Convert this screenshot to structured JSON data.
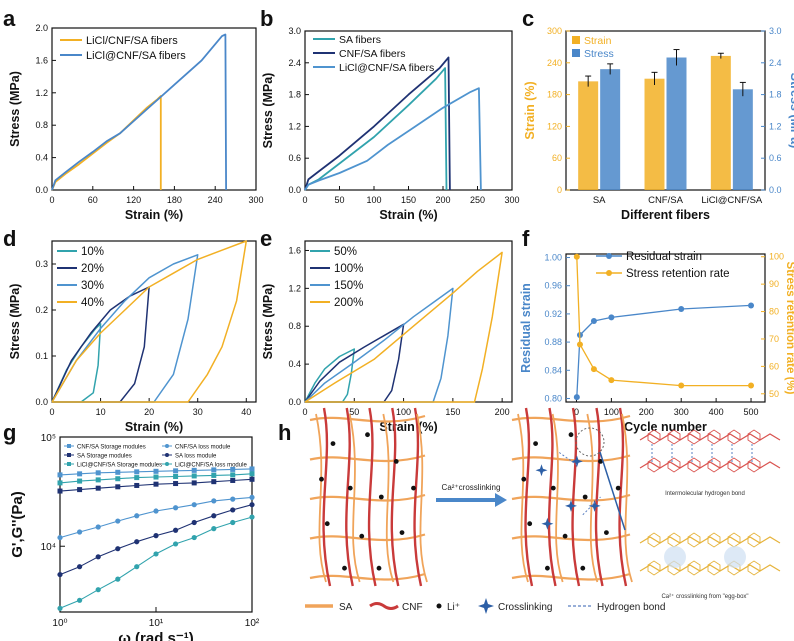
{
  "figure": {
    "colors": {
      "orange": "#f2b024",
      "blue": "#4a87c9",
      "navy": "#1f3273",
      "teal": "#31a3ad",
      "lightblue": "#4f94cf",
      "sa_strand": "#f0a45a",
      "cnf_strand": "#c93a3a",
      "dark": "#111111"
    },
    "schematic": {
      "arrow_label": "Ca²⁺crosslinking",
      "hbond_caption": "Intermolecular hydrogen bond",
      "eggbox_caption": "Ca²⁺ crosslinking from \"egg-box\"",
      "legend": {
        "sa": "SA",
        "cnf": "CNF",
        "li": "Li⁺",
        "crosslinking": "Crosslinking",
        "hbond": "Hydrogen bond"
      }
    }
  },
  "chart_data": [
    {
      "panel": "a",
      "type": "line",
      "xlabel": "Strain (%)",
      "ylabel": "Stress (MPa)",
      "xlim": [
        0,
        300
      ],
      "ylim": [
        0,
        2.0
      ],
      "xticks": [
        0,
        60,
        120,
        180,
        240,
        300
      ],
      "yticks": [
        0.0,
        0.4,
        0.8,
        1.2,
        1.6,
        2.0
      ],
      "series": [
        {
          "name": "LiCl/CNF/SA fibers",
          "color": "#f2b024",
          "x": [
            0,
            5,
            20,
            40,
            60,
            80,
            100,
            120,
            140,
            155,
            160,
            160
          ],
          "y": [
            0,
            0.1,
            0.2,
            0.32,
            0.45,
            0.58,
            0.7,
            0.86,
            1.02,
            1.12,
            1.16,
            0
          ]
        },
        {
          "name": "LiCl@CNF/SA fibers",
          "color": "#4a87c9",
          "x": [
            0,
            5,
            20,
            40,
            60,
            80,
            100,
            140,
            180,
            220,
            250,
            255,
            256
          ],
          "y": [
            0,
            0.12,
            0.22,
            0.35,
            0.47,
            0.6,
            0.7,
            1.0,
            1.3,
            1.6,
            1.9,
            1.92,
            0
          ]
        }
      ]
    },
    {
      "panel": "b",
      "type": "line",
      "xlabel": "Strain (%)",
      "ylabel": "Stress (MPa)",
      "xlim": [
        0,
        300
      ],
      "ylim": [
        0,
        3.0
      ],
      "xticks": [
        0,
        50,
        100,
        150,
        200,
        250,
        300
      ],
      "yticks": [
        0.0,
        0.6,
        1.2,
        1.8,
        2.4,
        3.0
      ],
      "series": [
        {
          "name": "SA fibers",
          "color": "#31a3ad",
          "x": [
            0,
            5,
            20,
            50,
            100,
            150,
            190,
            203,
            205
          ],
          "y": [
            0,
            0.1,
            0.2,
            0.5,
            1.0,
            1.6,
            2.1,
            2.3,
            0
          ]
        },
        {
          "name": "CNF/SA fibers",
          "color": "#1f3273",
          "x": [
            0,
            5,
            20,
            50,
            100,
            150,
            195,
            208,
            210
          ],
          "y": [
            0,
            0.2,
            0.35,
            0.65,
            1.2,
            1.8,
            2.3,
            2.5,
            0
          ]
        },
        {
          "name": "LiCl@CNF/SA fibers",
          "color": "#4f94cf",
          "x": [
            0,
            5,
            20,
            50,
            90,
            120,
            160,
            200,
            240,
            252,
            255
          ],
          "y": [
            0,
            0.1,
            0.18,
            0.32,
            0.55,
            0.85,
            1.2,
            1.55,
            1.85,
            1.92,
            0
          ]
        }
      ]
    },
    {
      "panel": "c",
      "type": "bar",
      "xlabel": "Different fibers",
      "ylabel": "Strain (%)",
      "ylabel_right": "Stress (MPa)",
      "categories": [
        "SA",
        "CNF/SA",
        "LiCl@CNF/SA"
      ],
      "ylim": [
        0,
        300
      ],
      "ylim_right": [
        0,
        3.0
      ],
      "yticks": [
        0,
        60,
        120,
        180,
        240,
        300
      ],
      "yticks_right": [
        0.0,
        0.6,
        1.2,
        1.8,
        2.4,
        3.0
      ],
      "series": [
        {
          "name": "Strain",
          "color": "#f2b024",
          "axis": "left",
          "values": [
            205,
            210,
            253
          ],
          "errors": [
            10,
            12,
            5
          ]
        },
        {
          "name": "Stress",
          "color": "#4a87c9",
          "axis": "right",
          "values": [
            2.28,
            2.5,
            1.9
          ],
          "errors": [
            0.1,
            0.15,
            0.13
          ]
        }
      ]
    },
    {
      "panel": "d",
      "type": "line",
      "xlabel": "Strain (%)",
      "ylabel": "Stress (MPa)",
      "xlim": [
        0,
        42
      ],
      "ylim": [
        0,
        0.35
      ],
      "xticks": [
        0,
        10,
        20,
        30,
        40
      ],
      "yticks": [
        0.0,
        0.1,
        0.2,
        0.3
      ],
      "series": [
        {
          "name": "10%",
          "color": "#31a3ad",
          "loading": [
            [
              0,
              0
            ],
            [
              3,
              0.07
            ],
            [
              6,
              0.12
            ],
            [
              9,
              0.16
            ],
            [
              10,
              0.17
            ]
          ],
          "unloading": [
            [
              10,
              0.17
            ],
            [
              9.5,
              0.08
            ],
            [
              8.5,
              0.02
            ],
            [
              6,
              0.0
            ],
            [
              0,
              0
            ]
          ]
        },
        {
          "name": "20%",
          "color": "#1f3273",
          "loading": [
            [
              0,
              0
            ],
            [
              4,
              0.09
            ],
            [
              8,
              0.15
            ],
            [
              12,
              0.2
            ],
            [
              16,
              0.23
            ],
            [
              20,
              0.25
            ]
          ],
          "unloading": [
            [
              20,
              0.25
            ],
            [
              19,
              0.12
            ],
            [
              17,
              0.04
            ],
            [
              14,
              0.0
            ],
            [
              0,
              0
            ]
          ]
        },
        {
          "name": "30%",
          "color": "#4f94cf",
          "loading": [
            [
              0,
              0
            ],
            [
              5,
              0.09
            ],
            [
              10,
              0.16
            ],
            [
              15,
              0.22
            ],
            [
              20,
              0.27
            ],
            [
              25,
              0.3
            ],
            [
              30,
              0.32
            ]
          ],
          "unloading": [
            [
              30,
              0.32
            ],
            [
              28,
              0.18
            ],
            [
              25,
              0.06
            ],
            [
              21,
              0.0
            ],
            [
              0,
              0
            ]
          ]
        },
        {
          "name": "40%",
          "color": "#f2b024",
          "loading": [
            [
              0,
              0
            ],
            [
              5,
              0.09
            ],
            [
              10,
              0.15
            ],
            [
              15,
              0.2
            ],
            [
              20,
              0.25
            ],
            [
              25,
              0.28
            ],
            [
              30,
              0.31
            ],
            [
              35,
              0.33
            ],
            [
              40,
              0.35
            ]
          ],
          "unloading": [
            [
              40,
              0.35
            ],
            [
              38,
              0.22
            ],
            [
              35,
              0.12
            ],
            [
              32,
              0.06
            ],
            [
              28,
              0.0
            ],
            [
              0,
              0
            ]
          ]
        }
      ]
    },
    {
      "panel": "e",
      "type": "line",
      "xlabel": "Strain (%)",
      "ylabel": "Stress (MPa)",
      "xlim": [
        0,
        210
      ],
      "ylim": [
        0,
        1.7
      ],
      "xticks": [
        0,
        50,
        100,
        150,
        200
      ],
      "yticks": [
        0.0,
        0.4,
        0.8,
        1.2,
        1.6
      ],
      "series": [
        {
          "name": "50%",
          "color": "#31a3ad",
          "loading": [
            [
              0,
              0
            ],
            [
              10,
              0.2
            ],
            [
              20,
              0.35
            ],
            [
              35,
              0.48
            ],
            [
              50,
              0.56
            ]
          ],
          "unloading": [
            [
              50,
              0.56
            ],
            [
              47,
              0.3
            ],
            [
              43,
              0.08
            ],
            [
              38,
              0.0
            ],
            [
              0,
              0
            ]
          ]
        },
        {
          "name": "100%",
          "color": "#1f3273",
          "loading": [
            [
              0,
              0
            ],
            [
              15,
              0.22
            ],
            [
              35,
              0.42
            ],
            [
              60,
              0.58
            ],
            [
              80,
              0.7
            ],
            [
              100,
              0.82
            ]
          ],
          "unloading": [
            [
              100,
              0.82
            ],
            [
              95,
              0.45
            ],
            [
              88,
              0.12
            ],
            [
              80,
              0.0
            ],
            [
              0,
              0
            ]
          ]
        },
        {
          "name": "150%",
          "color": "#4f94cf",
          "loading": [
            [
              0,
              0
            ],
            [
              20,
              0.2
            ],
            [
              50,
              0.42
            ],
            [
              80,
              0.65
            ],
            [
              110,
              0.9
            ],
            [
              130,
              1.05
            ],
            [
              150,
              1.2
            ]
          ],
          "unloading": [
            [
              150,
              1.2
            ],
            [
              145,
              0.7
            ],
            [
              138,
              0.25
            ],
            [
              130,
              0.0
            ],
            [
              0,
              0
            ]
          ]
        },
        {
          "name": "200%",
          "color": "#f2b024",
          "loading": [
            [
              0,
              0
            ],
            [
              30,
              0.2
            ],
            [
              70,
              0.45
            ],
            [
              110,
              0.8
            ],
            [
              150,
              1.15
            ],
            [
              175,
              1.38
            ],
            [
              200,
              1.58
            ]
          ],
          "unloading": [
            [
              200,
              1.58
            ],
            [
              190,
              0.9
            ],
            [
              180,
              0.35
            ],
            [
              172,
              0.0
            ],
            [
              0,
              0
            ]
          ]
        }
      ]
    },
    {
      "panel": "f",
      "type": "line",
      "xlabel": "Cycle number",
      "ylabel": "Residual strain",
      "ylabel_right": "Stress retention rate (%)",
      "xlim": [
        -30,
        540
      ],
      "ylim": [
        0.795,
        1.005
      ],
      "ylim_right": [
        47,
        101
      ],
      "xticks": [
        0,
        100,
        200,
        300,
        400,
        500
      ],
      "yticks": [
        0.8,
        0.84,
        0.88,
        0.92,
        0.96,
        1.0
      ],
      "yticks_right": [
        50,
        60,
        70,
        80,
        90,
        100
      ],
      "series": [
        {
          "name": "Residual strain",
          "color": "#4a87c9",
          "axis": "left",
          "x": [
            1,
            10,
            50,
            100,
            300,
            500
          ],
          "y": [
            0.802,
            0.89,
            0.91,
            0.915,
            0.927,
            0.932
          ]
        },
        {
          "name": "Stress retention rate",
          "color": "#f2b024",
          "axis": "right",
          "x": [
            1,
            10,
            50,
            100,
            300,
            500
          ],
          "y": [
            100,
            68,
            59,
            55,
            53,
            53
          ]
        }
      ]
    },
    {
      "panel": "g",
      "type": "scatter",
      "xlabel": "ω (rad s⁻¹)",
      "ylabel": "G',G''(Pa)",
      "xscale": "log",
      "yscale": "log",
      "xlim": [
        1,
        100
      ],
      "ylim": [
        2500,
        100000
      ],
      "xticks": [
        "10⁰",
        "10¹",
        "10²"
      ],
      "yticks": [
        "10⁴",
        "10⁵"
      ],
      "legend": [
        "CNF/SA Storage modules",
        "CNF/SA loss module",
        "SA Storage modules",
        "SA loss module",
        "LiCl@CNF/SA Storage modules",
        "LiCl@CNF/SA loss module"
      ],
      "series": [
        {
          "name": "CNF/SA Storage modules",
          "color": "#4f94cf",
          "marker": "square",
          "x": [
            1,
            1.6,
            2.5,
            4,
            6.3,
            10,
            16,
            25,
            40,
            63,
            100
          ],
          "y": [
            45000,
            46000,
            47000,
            47500,
            48000,
            48500,
            49000,
            49500,
            50000,
            50500,
            51000
          ]
        },
        {
          "name": "CNF/SA loss module",
          "color": "#4f94cf",
          "marker": "circle",
          "x": [
            1,
            1.6,
            2.5,
            4,
            6.3,
            10,
            16,
            25,
            40,
            63,
            100
          ],
          "y": [
            12000,
            13500,
            15000,
            17000,
            19000,
            21000,
            22500,
            24000,
            26000,
            27000,
            28000
          ]
        },
        {
          "name": "SA Storage modules",
          "color": "#1f3273",
          "marker": "square",
          "x": [
            1,
            1.6,
            2.5,
            4,
            6.3,
            10,
            16,
            25,
            40,
            63,
            100
          ],
          "y": [
            32000,
            33000,
            34000,
            35000,
            36000,
            37000,
            37500,
            38000,
            39000,
            40000,
            41000
          ]
        },
        {
          "name": "SA loss module",
          "color": "#1f3273",
          "marker": "circle",
          "x": [
            1,
            1.6,
            2.5,
            4,
            6.3,
            10,
            16,
            25,
            40,
            63,
            100
          ],
          "y": [
            5500,
            6500,
            8000,
            9500,
            11000,
            12500,
            14000,
            16500,
            19000,
            21500,
            24000
          ]
        },
        {
          "name": "LiCl@CNF/SA Storage modules",
          "color": "#31a3ad",
          "marker": "square",
          "x": [
            1,
            1.6,
            2.5,
            4,
            6.3,
            10,
            16,
            25,
            40,
            63,
            100
          ],
          "y": [
            38000,
            39500,
            40500,
            41500,
            42500,
            43000,
            43500,
            44000,
            44500,
            45000,
            46000
          ]
        },
        {
          "name": "LiCl@CNF/SA loss module",
          "color": "#31a3ad",
          "marker": "circle",
          "x": [
            1,
            1.6,
            2.5,
            4,
            6.3,
            10,
            16,
            25,
            40,
            63,
            100
          ],
          "y": [
            2700,
            3200,
            4000,
            5000,
            6500,
            8500,
            10500,
            12000,
            14500,
            16500,
            18500
          ]
        }
      ]
    }
  ]
}
